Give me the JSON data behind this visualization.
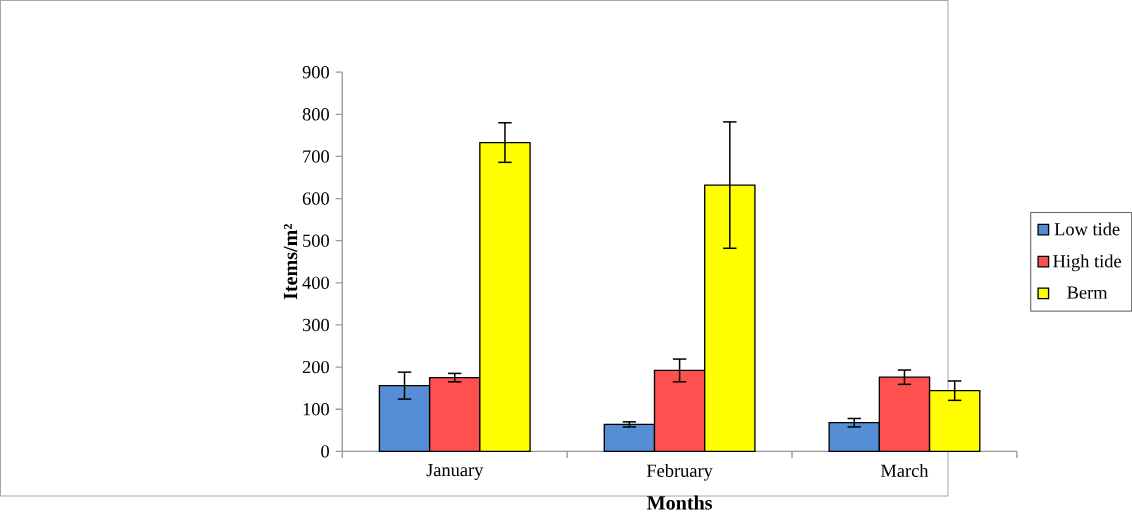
{
  "chart_data": {
    "type": "bar",
    "xlabel": "Months",
    "ylabel": "Items/m²",
    "categories": [
      "January",
      "February",
      "March"
    ],
    "series": [
      {
        "name": "Low tide",
        "color": "#558ed5",
        "values": [
          156,
          64,
          68
        ],
        "errors": [
          32,
          6,
          10
        ]
      },
      {
        "name": "High tide",
        "color": "#ff5050",
        "values": [
          175,
          192,
          176
        ],
        "errors": [
          10,
          27,
          17
        ]
      },
      {
        "name": "Berm",
        "color": "#ffff00",
        "values": [
          733,
          632,
          144
        ],
        "errors": [
          47,
          150,
          23
        ]
      }
    ],
    "ylim": [
      0,
      900
    ],
    "yticks": [
      0,
      100,
      200,
      300,
      400,
      500,
      600,
      700,
      800,
      900
    ],
    "grid": false,
    "legend": "right"
  }
}
